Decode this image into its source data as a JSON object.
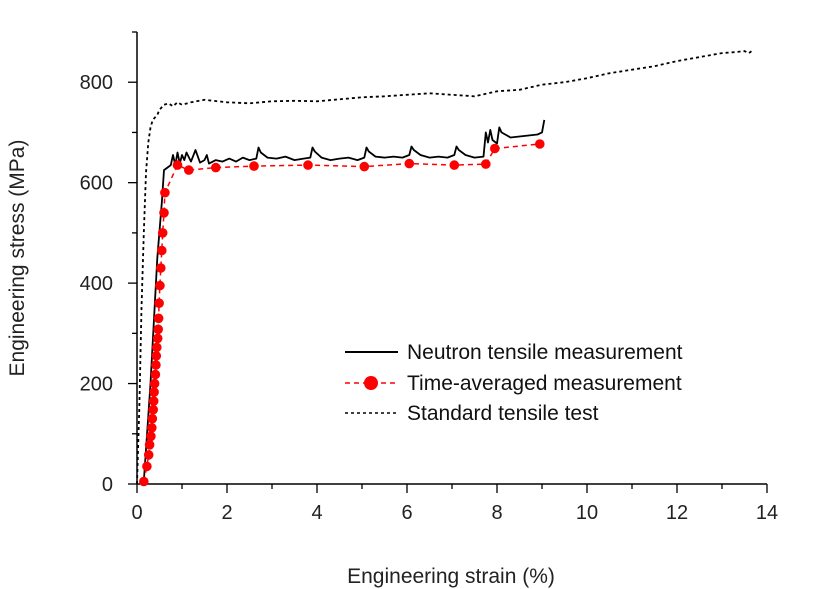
{
  "chart_data": {
    "type": "line",
    "title": "",
    "xlabel": "Engineering strain (%)",
    "ylabel": "Engineering stress (MPa)",
    "xlim": [
      0,
      14
    ],
    "ylim": [
      0,
      900
    ],
    "xticks": [
      0,
      2,
      4,
      6,
      8,
      10,
      12,
      14
    ],
    "yticks": [
      0,
      200,
      400,
      600,
      800
    ],
    "xtick_labels": [
      "0",
      "2",
      "4",
      "6",
      "8",
      "10",
      "12",
      "14"
    ],
    "ytick_labels": [
      "0",
      "200",
      "400",
      "600",
      "800"
    ],
    "grid": false,
    "legend_position": "lower-right",
    "series": [
      {
        "name": "Neutron tensile measurement",
        "style": "solid",
        "color": "#000000",
        "x": [
          0.15,
          0.3,
          0.45,
          0.55,
          0.6,
          0.75,
          0.8,
          0.85,
          0.9,
          0.95,
          1.0,
          1.05,
          1.1,
          1.2,
          1.3,
          1.4,
          1.5,
          1.55,
          1.6,
          1.75,
          1.9,
          2.05,
          2.2,
          2.35,
          2.5,
          2.65,
          2.7,
          2.75,
          2.9,
          3.1,
          3.3,
          3.5,
          3.7,
          3.85,
          3.9,
          3.95,
          4.1,
          4.3,
          4.5,
          4.7,
          4.9,
          5.05,
          5.1,
          5.15,
          5.3,
          5.5,
          5.7,
          5.9,
          6.05,
          6.1,
          6.15,
          6.3,
          6.5,
          6.7,
          6.9,
          7.05,
          7.1,
          7.15,
          7.3,
          7.5,
          7.7,
          7.75,
          7.8,
          7.85,
          7.9,
          8.0,
          8.05,
          8.1,
          8.3,
          8.5,
          8.7,
          8.9,
          9.0,
          9.05
        ],
        "y": [
          5,
          200,
          450,
          560,
          625,
          635,
          655,
          635,
          660,
          638,
          655,
          645,
          660,
          642,
          665,
          640,
          645,
          655,
          638,
          645,
          642,
          648,
          642,
          650,
          645,
          648,
          670,
          660,
          650,
          648,
          652,
          645,
          648,
          650,
          670,
          662,
          650,
          645,
          648,
          650,
          645,
          650,
          670,
          662,
          652,
          650,
          652,
          650,
          655,
          672,
          665,
          655,
          650,
          652,
          650,
          655,
          672,
          665,
          655,
          650,
          652,
          700,
          680,
          705,
          685,
          678,
          710,
          700,
          690,
          692,
          694,
          696,
          700,
          725
        ]
      },
      {
        "name": "Time-averaged measurement",
        "style": "dashed-markers",
        "color": "#ff0000",
        "x": [
          0.15,
          0.22,
          0.26,
          0.28,
          0.31,
          0.33,
          0.34,
          0.36,
          0.37,
          0.38,
          0.39,
          0.41,
          0.42,
          0.43,
          0.44,
          0.46,
          0.47,
          0.48,
          0.49,
          0.51,
          0.53,
          0.55,
          0.57,
          0.6,
          0.62,
          0.9,
          1.15,
          1.75,
          2.6,
          3.8,
          5.05,
          6.05,
          7.05,
          7.75,
          7.95,
          8.95
        ],
        "y": [
          5,
          35,
          58,
          78,
          95,
          112,
          130,
          148,
          165,
          183,
          200,
          218,
          237,
          255,
          272,
          290,
          308,
          330,
          360,
          395,
          430,
          465,
          500,
          540,
          580,
          635,
          625,
          630,
          633,
          635,
          632,
          638,
          635,
          637,
          668,
          677
        ]
      },
      {
        "name": "Standard tensile test",
        "style": "dotted",
        "color": "#000000",
        "x": [
          0.0,
          0.05,
          0.1,
          0.15,
          0.2,
          0.25,
          0.3,
          0.35,
          0.45,
          0.5,
          0.6,
          0.7,
          0.8,
          0.9,
          1.0,
          1.2,
          1.5,
          2.0,
          2.5,
          3.0,
          3.5,
          4.0,
          4.5,
          5.0,
          5.5,
          6.0,
          6.5,
          7.0,
          7.5,
          8.0,
          8.5,
          9.0,
          9.5,
          10.0,
          10.5,
          11.0,
          11.5,
          12.0,
          12.5,
          13.0,
          13.3,
          13.5,
          13.6,
          13.7
        ],
        "y": [
          0,
          150,
          350,
          500,
          620,
          680,
          710,
          725,
          735,
          745,
          755,
          758,
          752,
          760,
          755,
          760,
          765,
          760,
          758,
          762,
          763,
          762,
          766,
          770,
          772,
          775,
          778,
          775,
          772,
          782,
          785,
          795,
          800,
          808,
          818,
          825,
          832,
          842,
          850,
          858,
          860,
          862,
          858,
          865
        ]
      }
    ]
  }
}
